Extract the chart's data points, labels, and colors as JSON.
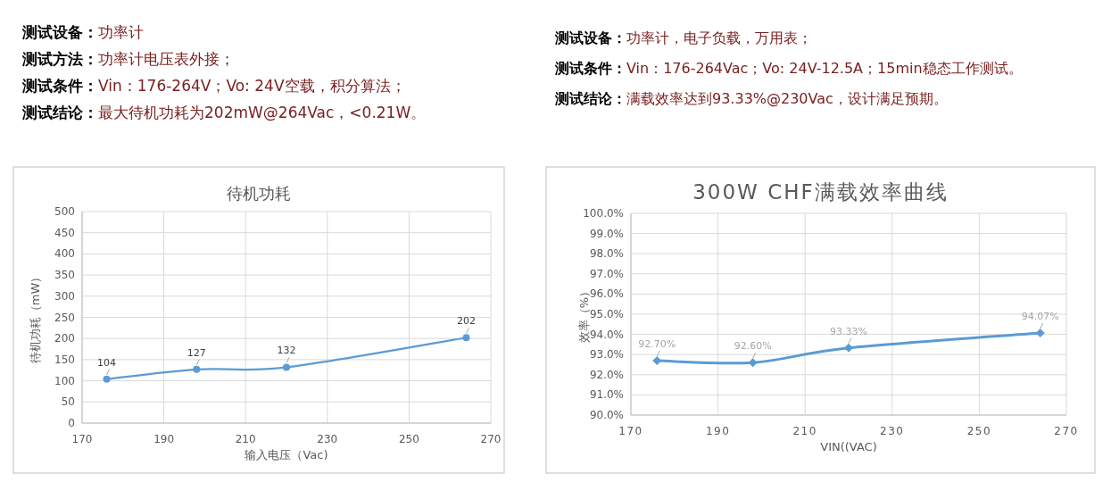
{
  "chart_data": [
    {
      "type": "line",
      "title": "待机功耗",
      "xlabel": "输入电压（Vac)",
      "ylabel": "待机功耗（mW）",
      "annotations": [
        "测试设备：功率计",
        "测试方法：功率计电压表外接；",
        "测试条件：Vin：176-264V；Vo: 24V空载，积分算法；",
        "测试结论：最大待机功耗为202mW@264Vac，<0.21W。"
      ],
      "x": [
        176,
        198,
        220,
        264
      ],
      "series": [
        {
          "color": "#5b9bd5",
          "values": [
            104,
            127,
            132,
            202
          ]
        }
      ],
      "xlim": [
        170,
        270
      ],
      "xticks": [
        170,
        190,
        210,
        230,
        250,
        270
      ],
      "ylim": [
        0,
        500
      ],
      "yticks": [
        0,
        50,
        100,
        150,
        200,
        250,
        300,
        350,
        400,
        450,
        500
      ],
      "grid": true,
      "marker": "circle",
      "data_labels": true
    },
    {
      "type": "line",
      "title": "300W CHF满载效率曲线",
      "xlabel": "VIN((VAC)",
      "ylabel": "效率（%）",
      "annotations": [
        "测试设备：功率计，电子负载，万用表；",
        "测试条件：Vin：176-264Vac；Vo: 24V-12.5A；15min稳态工作测试。",
        "测试结论：满载效率达到93.33%@230Vac，设计满足预期。"
      ],
      "x": [
        176,
        198,
        220,
        264
      ],
      "series": [
        {
          "color": "#5b9bd5",
          "values": [
            92.7,
            92.6,
            93.33,
            94.07
          ],
          "value_labels": [
            "92.70%",
            "92.60%",
            "93.33%",
            "94.07%"
          ]
        }
      ],
      "xlim": [
        170,
        270
      ],
      "xticks": [
        170,
        190,
        210,
        230,
        250,
        270
      ],
      "ylim": [
        90,
        100
      ],
      "yticks": [
        {
          "value": 90,
          "label": "90.0%"
        },
        {
          "value": 91,
          "label": "91.0%"
        },
        {
          "value": 92,
          "label": "92.0%"
        },
        {
          "value": 93,
          "label": "93.0%"
        },
        {
          "value": 94,
          "label": "94.0%"
        },
        {
          "value": 95,
          "label": "95.0%"
        },
        {
          "value": 96,
          "label": "96.0%"
        },
        {
          "value": 97,
          "label": "97.0%"
        },
        {
          "value": 98,
          "label": "98.0%"
        },
        {
          "value": 99,
          "label": "99.0%"
        },
        {
          "value": 100,
          "label": "100.0%"
        }
      ],
      "grid": true,
      "marker": "diamond"
    }
  ]
}
